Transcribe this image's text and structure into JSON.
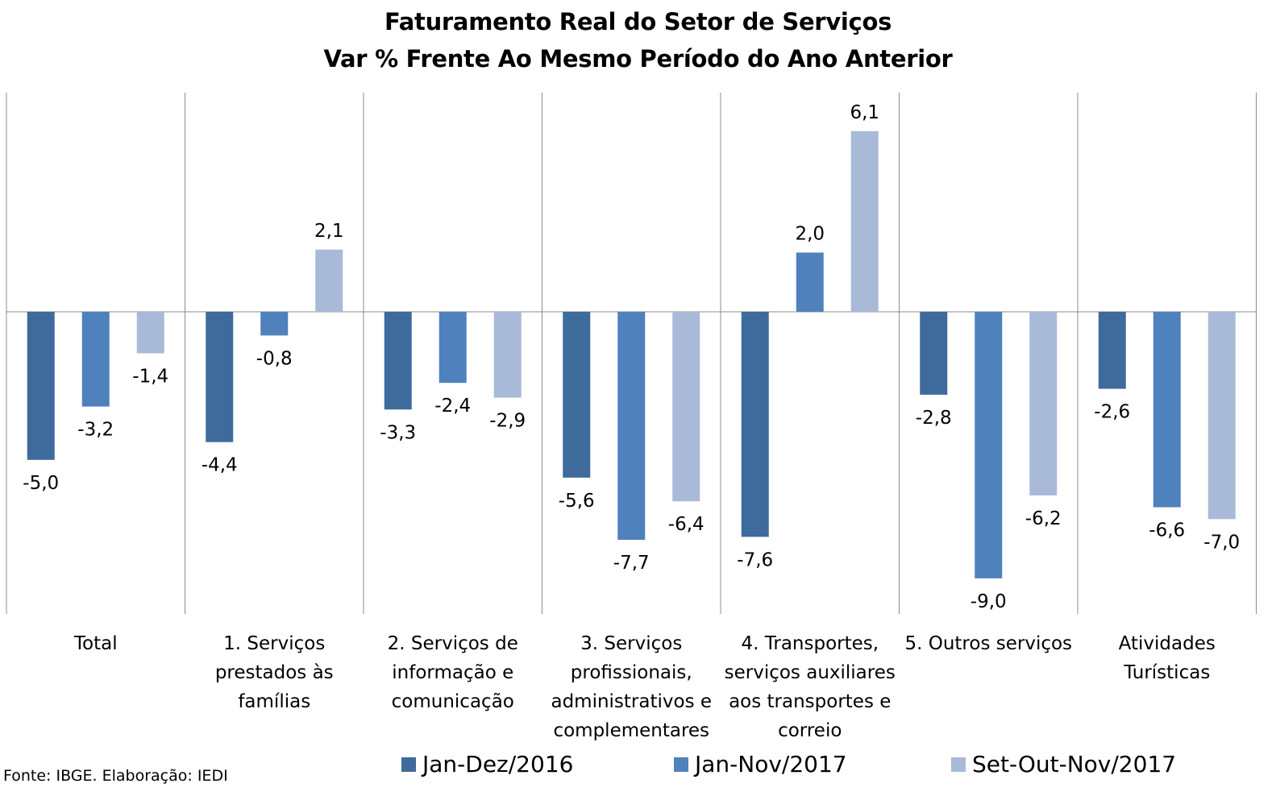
{
  "chart_data": {
    "type": "bar",
    "title": "Faturamento Real do Setor de Serviços",
    "subtitle": "Var % Frente Ao Mesmo Período do Ano Anterior",
    "categories": [
      "Total",
      "1. Serviços prestados às famílias",
      "2. Serviços de informação e comunicação",
      "3. Serviços profissionais, administrativos e complementares",
      "4. Transportes, serviços auxiliares aos transportes e correio",
      "5. Outros serviços",
      "Atividades Turísticas"
    ],
    "series": [
      {
        "name": "Jan-Dez/2016",
        "color": "#3f6a9c",
        "values": [
          -5.0,
          -4.4,
          -3.3,
          -5.6,
          -7.6,
          -2.8,
          -2.6
        ],
        "labels": [
          "-5,0",
          "-4,4",
          "-3,3",
          "-5,6",
          "-7,6",
          "-2,8",
          "-2,6"
        ]
      },
      {
        "name": "Jan-Nov/2017",
        "color": "#4f81bd",
        "values": [
          -3.2,
          -0.8,
          -2.4,
          -7.7,
          2.0,
          -9.0,
          -6.6
        ],
        "labels": [
          "-3,2",
          "-0,8",
          "-2,4",
          "-7,7",
          "2,0",
          "-9,0",
          "-6,6"
        ]
      },
      {
        "name": "Set-Out-Nov/2017",
        "color": "#a9b9d8",
        "values": [
          -1.4,
          2.1,
          -2.9,
          -6.4,
          6.1,
          -6.2,
          -7.0
        ],
        "labels": [
          "-1,4",
          "2,1",
          "-2,9",
          "-6,4",
          "6,1",
          "-6,2",
          "-7,0"
        ]
      }
    ],
    "ylim": [
      -10.2,
      7.4
    ],
    "grid": false,
    "legend_position": "bottom"
  },
  "category_lines": [
    [
      "Total"
    ],
    [
      "1. Serviços",
      "prestados às",
      "famílias"
    ],
    [
      "2. Serviços de",
      "informação e",
      "comunicação"
    ],
    [
      "3. Serviços",
      "profissionais,",
      "administrativos e",
      "complementares"
    ],
    [
      "4. Transportes,",
      "serviços auxiliares",
      "aos transportes e",
      "correio"
    ],
    [
      "5. Outros serviços"
    ],
    [
      "Atividades",
      "Turísticas"
    ]
  ],
  "source": "Fonte: IBGE. Elaboração: IEDI"
}
